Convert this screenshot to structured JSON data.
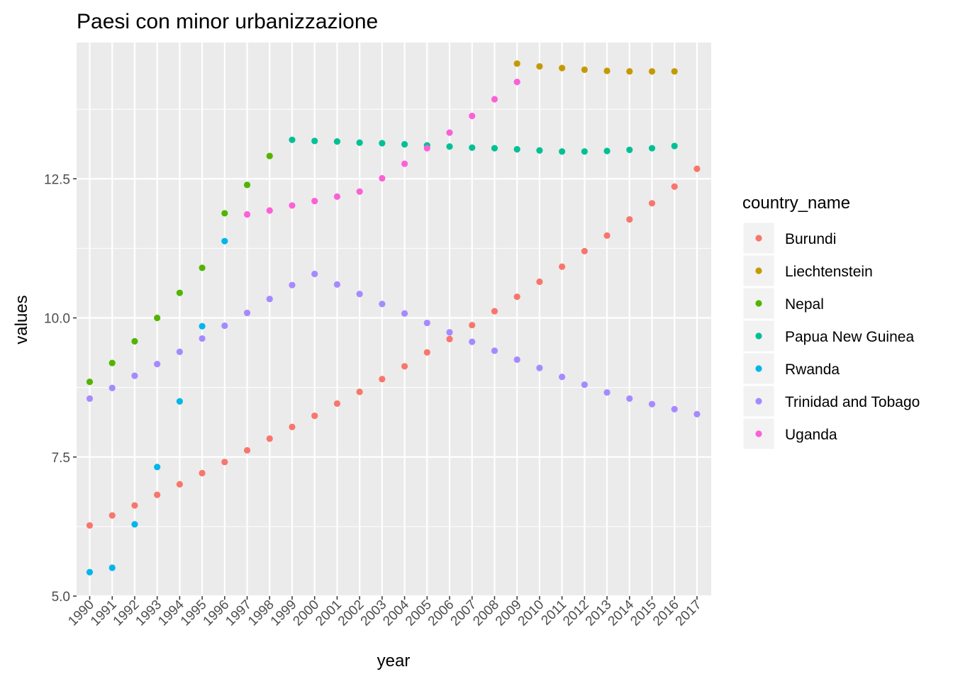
{
  "chart_data": {
    "type": "scatter",
    "title": "Paesi con minor urbanizzazione",
    "xlabel": "year",
    "ylabel": "values",
    "x": [
      "1990",
      "1991",
      "1992",
      "1993",
      "1994",
      "1995",
      "1996",
      "1997",
      "1998",
      "1999",
      "2000",
      "2001",
      "2002",
      "2003",
      "2004",
      "2005",
      "2006",
      "2007",
      "2008",
      "2009",
      "2010",
      "2011",
      "2012",
      "2013",
      "2014",
      "2015",
      "2016",
      "2017"
    ],
    "ylim": [
      5.0,
      15.0
    ],
    "y_ticks": [
      {
        "value": 5.0,
        "label": "5.0"
      },
      {
        "value": 7.5,
        "label": "7.5"
      },
      {
        "value": 10.0,
        "label": "10.0"
      },
      {
        "value": 12.5,
        "label": "12.5"
      }
    ],
    "legend": {
      "title": "country_name",
      "position": "right"
    },
    "grid": true,
    "series": [
      {
        "name": "Burundi",
        "color": "#F8766D",
        "values": [
          6.27,
          6.45,
          6.63,
          6.82,
          7.01,
          7.21,
          7.41,
          7.62,
          7.83,
          8.04,
          8.24,
          8.46,
          8.67,
          8.9,
          9.13,
          9.38,
          9.62,
          9.87,
          10.12,
          10.38,
          10.65,
          10.92,
          11.2,
          11.48,
          11.77,
          12.06,
          12.36,
          12.68
        ]
      },
      {
        "name": "Liechtenstein",
        "color": "#C49A00",
        "values": [
          null,
          null,
          null,
          null,
          null,
          null,
          null,
          null,
          null,
          null,
          null,
          null,
          null,
          null,
          null,
          null,
          null,
          null,
          null,
          14.57,
          14.52,
          14.49,
          14.46,
          14.44,
          14.43,
          14.43,
          14.43,
          null
        ]
      },
      {
        "name": "Nepal",
        "color": "#53B400",
        "values": [
          8.85,
          9.19,
          9.58,
          10.0,
          10.45,
          10.9,
          11.88,
          12.39,
          12.91,
          null,
          null,
          null,
          null,
          null,
          null,
          null,
          null,
          null,
          null,
          null,
          null,
          null,
          null,
          null,
          null,
          null,
          null,
          null
        ]
      },
      {
        "name": "Papua New Guinea",
        "color": "#00C094",
        "values": [
          null,
          null,
          null,
          null,
          null,
          null,
          null,
          null,
          null,
          13.2,
          13.18,
          13.17,
          13.15,
          13.14,
          13.12,
          13.1,
          13.08,
          13.06,
          13.05,
          13.03,
          13.01,
          12.99,
          12.99,
          13.0,
          13.02,
          13.05,
          13.09,
          null
        ]
      },
      {
        "name": "Rwanda",
        "color": "#00B6EB",
        "values": [
          5.43,
          5.51,
          6.29,
          7.32,
          8.5,
          9.85,
          11.38,
          null,
          null,
          null,
          null,
          null,
          null,
          null,
          null,
          null,
          null,
          null,
          null,
          null,
          null,
          null,
          null,
          null,
          null,
          null,
          null,
          null
        ]
      },
      {
        "name": "Trinidad and Tobago",
        "color": "#A58AFF",
        "values": [
          8.55,
          8.74,
          8.96,
          9.17,
          9.39,
          9.63,
          9.86,
          10.09,
          10.34,
          10.59,
          10.79,
          10.6,
          10.43,
          10.25,
          10.08,
          9.91,
          9.74,
          9.57,
          9.41,
          9.25,
          9.1,
          8.94,
          8.8,
          8.66,
          8.55,
          8.45,
          8.36,
          8.27
        ]
      },
      {
        "name": "Uganda",
        "color": "#FB61D7",
        "values": [
          null,
          null,
          null,
          null,
          null,
          null,
          null,
          11.86,
          11.93,
          12.02,
          12.1,
          12.18,
          12.27,
          12.51,
          12.77,
          13.05,
          13.33,
          13.63,
          13.93,
          14.24,
          null,
          null,
          null,
          null,
          null,
          null,
          null,
          null
        ]
      }
    ]
  }
}
